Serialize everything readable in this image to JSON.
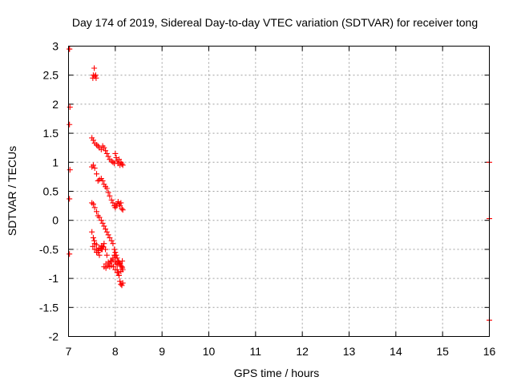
{
  "chart_data": {
    "type": "scatter",
    "title": "Day 174 of 2019, Sidereal Day-to-day VTEC variation (SDTVAR) for receiver tong",
    "xlabel": "GPS time / hours",
    "ylabel": "SDTVAR / TECUs",
    "xlim": [
      7,
      16
    ],
    "ylim": [
      -2,
      3
    ],
    "xticks": [
      7,
      8,
      9,
      10,
      11,
      12,
      13,
      14,
      15,
      16
    ],
    "yticks": [
      -2,
      -1.5,
      -1,
      -0.5,
      0,
      0.5,
      1,
      1.5,
      2,
      2.5,
      3
    ],
    "xtick_labels": [
      "7",
      "8",
      "9",
      "10",
      "11",
      "12",
      "13",
      "14",
      "15",
      "16"
    ],
    "ytick_labels": [
      "-2",
      "-1.5",
      "-1",
      "-0.5",
      "0",
      "0.5",
      "1",
      "1.5",
      "2",
      "2.5",
      "3"
    ],
    "grid": true,
    "marker": "+",
    "color": "#ff0000",
    "series": [
      {
        "name": "SDTVAR",
        "x": [
          7.02,
          7.03,
          7.02,
          7.03,
          7.02,
          7.02,
          7.02,
          7.52,
          7.55,
          7.58,
          7.53,
          7.56,
          7.59,
          7.5,
          7.53,
          7.56,
          7.6,
          7.63,
          7.66,
          7.7,
          7.73,
          7.76,
          7.79,
          7.82,
          7.85,
          7.88,
          7.92,
          7.95,
          7.98,
          8.0,
          8.02,
          8.04,
          8.06,
          8.08,
          8.1,
          8.12,
          8.14,
          8.16,
          7.5,
          7.53,
          7.56,
          7.6,
          7.63,
          7.66,
          7.7,
          7.73,
          7.76,
          7.79,
          7.82,
          7.85,
          7.88,
          7.92,
          7.95,
          7.98,
          8.0,
          8.02,
          8.04,
          8.06,
          8.08,
          8.1,
          8.12,
          8.14,
          8.16,
          7.5,
          7.53,
          7.56,
          7.6,
          7.63,
          7.66,
          7.7,
          7.73,
          7.76,
          7.79,
          7.82,
          7.85,
          7.88,
          7.92,
          7.95,
          7.98,
          8.0,
          8.02,
          8.04,
          8.06,
          8.08,
          8.1,
          8.12,
          8.14,
          8.16,
          7.5,
          7.53,
          7.56,
          7.6,
          7.63,
          7.66,
          7.7,
          7.73,
          7.76,
          7.79,
          7.82,
          7.85,
          7.88,
          7.92,
          7.95,
          7.98,
          8.0,
          8.02,
          8.04,
          8.06,
          8.08,
          8.1,
          8.12,
          8.14,
          8.16,
          7.52,
          7.56,
          7.6,
          7.64,
          7.68,
          7.72,
          7.76,
          7.8,
          7.84,
          7.88,
          7.92,
          7.96,
          8.0,
          8.04,
          8.08,
          8.12,
          8.15,
          7.55,
          7.6,
          7.65,
          7.7,
          7.75,
          7.8,
          7.85,
          7.9,
          7.95,
          8.0,
          8.05,
          8.1,
          8.15,
          16.0,
          16.0,
          16.0
        ],
        "y": [
          2.95,
          1.95,
          1.65,
          0.87,
          0.37,
          -0.58,
          2.95,
          2.45,
          2.62,
          2.5,
          2.5,
          2.48,
          2.45,
          1.42,
          1.38,
          1.33,
          1.3,
          1.28,
          1.25,
          1.22,
          1.28,
          1.25,
          1.2,
          1.15,
          1.1,
          1.05,
          1.02,
          1.0,
          0.98,
          1.15,
          1.08,
          1.02,
          0.98,
          1.05,
          0.95,
          1.0,
          0.97,
          0.95,
          0.92,
          0.95,
          0.9,
          0.8,
          0.68,
          0.7,
          0.72,
          0.68,
          0.62,
          0.58,
          0.55,
          0.48,
          0.42,
          0.35,
          0.3,
          0.25,
          0.22,
          0.25,
          0.28,
          0.32,
          0.28,
          0.25,
          0.3,
          0.2,
          0.18,
          0.3,
          0.28,
          0.22,
          0.15,
          0.08,
          0.05,
          0.0,
          -0.05,
          -0.1,
          -0.15,
          -0.2,
          -0.25,
          -0.3,
          -0.35,
          -0.4,
          -0.5,
          -0.55,
          -0.6,
          -0.65,
          -0.7,
          -0.72,
          -0.75,
          -0.78,
          -0.8,
          -0.85,
          -0.2,
          -0.3,
          -0.4,
          -0.5,
          -0.55,
          -0.6,
          -0.5,
          -0.45,
          -0.4,
          -0.5,
          -0.6,
          -0.75,
          -0.8,
          -0.7,
          -0.65,
          -0.6,
          -0.65,
          -0.75,
          -0.85,
          -0.9,
          -0.95,
          -1.05,
          -1.1,
          -1.12,
          -1.08,
          -0.45,
          -0.5,
          -0.55,
          -0.52,
          -0.48,
          -0.5,
          -0.8,
          -0.82,
          -0.78,
          -0.75,
          -0.78,
          -0.8,
          -0.85,
          -0.9,
          -0.95,
          -0.88,
          -0.82,
          -0.35,
          -0.42,
          -0.48,
          -0.44,
          -0.46,
          -0.75,
          -0.72,
          -0.7,
          -0.68,
          -0.72,
          -0.76,
          -0.74,
          -0.7,
          1.0,
          0.03,
          -1.72
        ]
      }
    ]
  }
}
